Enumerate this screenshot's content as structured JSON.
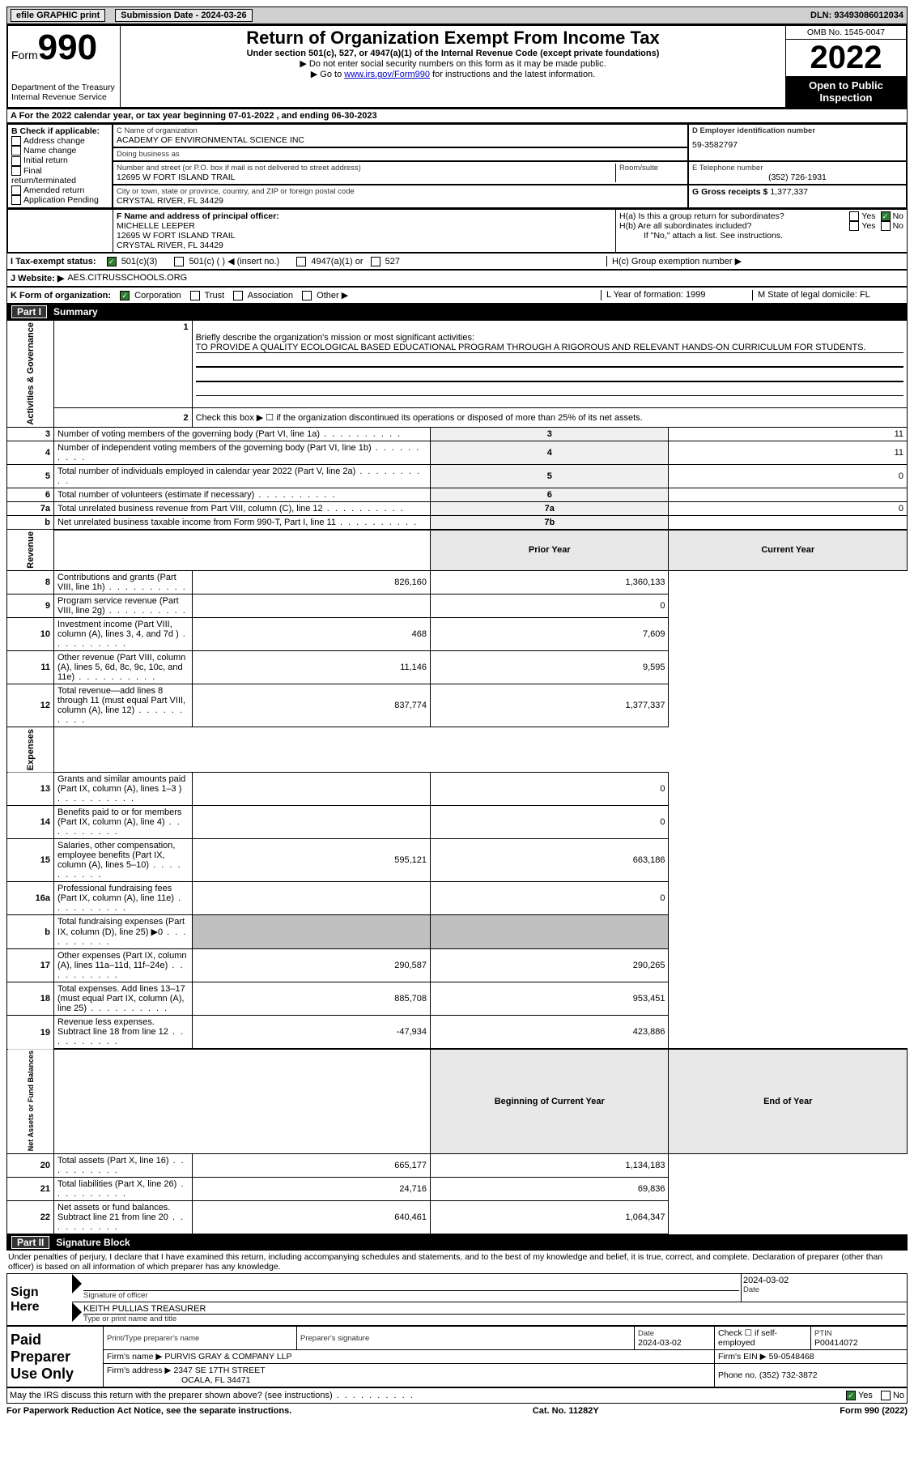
{
  "topbar": {
    "efile": "efile GRAPHIC print",
    "submission_label": "Submission Date - 2024-03-26",
    "dln": "DLN: 93493086012034"
  },
  "header": {
    "form_label": "Form",
    "form_number": "990",
    "dept": "Department of the Treasury Internal Revenue Service",
    "title": "Return of Organization Exempt From Income Tax",
    "subtitle": "Under section 501(c), 527, or 4947(a)(1) of the Internal Revenue Code (except private foundations)",
    "note1": "▶ Do not enter social security numbers on this form as it may be made public.",
    "note2_pre": "▶ Go to ",
    "note2_link": "www.irs.gov/Form990",
    "note2_post": " for instructions and the latest information.",
    "omb": "OMB No. 1545-0047",
    "year": "2022",
    "open": "Open to Public Inspection"
  },
  "A": "A For the 2022 calendar year, or tax year beginning 07-01-2022     , and ending 06-30-2023",
  "B": {
    "title": "B Check if applicable:",
    "addr_change": "Address change",
    "name_change": "Name change",
    "initial": "Initial return",
    "final": "Final return/terminated",
    "amended": "Amended return",
    "app_pending": "Application Pending"
  },
  "C": {
    "name_label": "C Name of organization",
    "name": "ACADEMY OF ENVIRONMENTAL SCIENCE INC",
    "dba_label": "Doing business as",
    "dba": "",
    "street_label": "Number and street (or P.O. box if mail is not delivered to street address)",
    "room_label": "Room/suite",
    "street": "12695 W FORT ISLAND TRAIL",
    "city_label": "City or town, state or province, country, and ZIP or foreign postal code",
    "city": "CRYSTAL RIVER, FL  34429"
  },
  "D": {
    "label": "D Employer identification number",
    "value": "59-3582797"
  },
  "E": {
    "label": "E Telephone number",
    "value": "(352) 726-1931"
  },
  "G": {
    "label": "G Gross receipts $",
    "value": "1,377,337"
  },
  "F": {
    "label": "F  Name and address of principal officer:",
    "name": "MICHELLE LEEPER",
    "street": "12695 W FORT ISLAND TRAIL",
    "city": "CRYSTAL RIVER, FL  34429"
  },
  "H": {
    "a": "H(a)  Is this a group return for subordinates?",
    "b": "H(b)  Are all subordinates included?",
    "note": "If \"No,\" attach a list. See instructions.",
    "c": "H(c)  Group exemption number ▶",
    "yes": "Yes",
    "no": "No"
  },
  "I": {
    "label": "I   Tax-exempt status:",
    "opt1": "501(c)(3)",
    "opt2": "501(c) (  ) ◀ (insert no.)",
    "opt3": "4947(a)(1) or",
    "opt4": "527"
  },
  "J": {
    "label": "J   Website: ▶ ",
    "value": "AES.CITRUSSCHOOLS.ORG"
  },
  "K": {
    "label": "K Form of organization:",
    "corp": "Corporation",
    "trust": "Trust",
    "assoc": "Association",
    "other": "Other ▶",
    "L": "L Year of formation: 1999",
    "M": "M State of legal domicile: FL"
  },
  "part1": {
    "title": "Part I",
    "name": "Summary",
    "line1_label": "Briefly describe the organization's mission or most significant activities:",
    "line1_text": "TO PROVIDE A QUALITY ECOLOGICAL BASED EDUCATIONAL PROGRAM THROUGH A RIGOROUS AND RELEVANT HANDS-ON CURRICULUM FOR STUDENTS.",
    "line2": "Check this box ▶ ☐  if the organization discontinued its operations or disposed of more than 25% of its net assets.",
    "rows_ag": [
      {
        "n": "3",
        "label": "Number of voting members of the governing body (Part VI, line 1a)",
        "box": "3",
        "val": "11"
      },
      {
        "n": "4",
        "label": "Number of independent voting members of the governing body (Part VI, line 1b)",
        "box": "4",
        "val": "11"
      },
      {
        "n": "5",
        "label": "Total number of individuals employed in calendar year 2022 (Part V, line 2a)",
        "box": "5",
        "val": "0"
      },
      {
        "n": "6",
        "label": "Total number of volunteers (estimate if necessary)",
        "box": "6",
        "val": ""
      },
      {
        "n": "7a",
        "label": "Total unrelated business revenue from Part VIII, column (C), line 12",
        "box": "7a",
        "val": "0"
      },
      {
        "n": "b",
        "label": "Net unrelated business taxable income from Form 990-T, Part I, line 11",
        "box": "7b",
        "val": ""
      }
    ],
    "col_prior": "Prior Year",
    "col_current": "Current Year",
    "revenue": [
      {
        "n": "8",
        "label": "Contributions and grants (Part VIII, line 1h)",
        "prior": "826,160",
        "curr": "1,360,133"
      },
      {
        "n": "9",
        "label": "Program service revenue (Part VIII, line 2g)",
        "prior": "",
        "curr": "0"
      },
      {
        "n": "10",
        "label": "Investment income (Part VIII, column (A), lines 3, 4, and 7d )",
        "prior": "468",
        "curr": "7,609"
      },
      {
        "n": "11",
        "label": "Other revenue (Part VIII, column (A), lines 5, 6d, 8c, 9c, 10c, and 11e)",
        "prior": "11,146",
        "curr": "9,595"
      },
      {
        "n": "12",
        "label": "Total revenue—add lines 8 through 11 (must equal Part VIII, column (A), line 12)",
        "prior": "837,774",
        "curr": "1,377,337"
      }
    ],
    "expenses": [
      {
        "n": "13",
        "label": "Grants and similar amounts paid (Part IX, column (A), lines 1–3 )",
        "prior": "",
        "curr": "0"
      },
      {
        "n": "14",
        "label": "Benefits paid to or for members (Part IX, column (A), line 4)",
        "prior": "",
        "curr": "0"
      },
      {
        "n": "15",
        "label": "Salaries, other compensation, employee benefits (Part IX, column (A), lines 5–10)",
        "prior": "595,121",
        "curr": "663,186"
      },
      {
        "n": "16a",
        "label": "Professional fundraising fees (Part IX, column (A), line 11e)",
        "prior": "",
        "curr": "0"
      },
      {
        "n": "b",
        "label": "Total fundraising expenses (Part IX, column (D), line 25) ▶0",
        "prior": "GRAY",
        "curr": "GRAY"
      },
      {
        "n": "17",
        "label": "Other expenses (Part IX, column (A), lines 11a–11d, 11f–24e)",
        "prior": "290,587",
        "curr": "290,265"
      },
      {
        "n": "18",
        "label": "Total expenses. Add lines 13–17 (must equal Part IX, column (A), line 25)",
        "prior": "885,708",
        "curr": "953,451"
      },
      {
        "n": "19",
        "label": "Revenue less expenses. Subtract line 18 from line 12",
        "prior": "-47,934",
        "curr": "423,886"
      }
    ],
    "col_begin": "Beginning of Current Year",
    "col_end": "End of Year",
    "net": [
      {
        "n": "20",
        "label": "Total assets (Part X, line 16)",
        "prior": "665,177",
        "curr": "1,134,183"
      },
      {
        "n": "21",
        "label": "Total liabilities (Part X, line 26)",
        "prior": "24,716",
        "curr": "69,836"
      },
      {
        "n": "22",
        "label": "Net assets or fund balances. Subtract line 21 from line 20",
        "prior": "640,461",
        "curr": "1,064,347"
      }
    ],
    "side_ag": "Activities & Governance",
    "side_rev": "Revenue",
    "side_exp": "Expenses",
    "side_net": "Net Assets or Fund Balances"
  },
  "part2": {
    "title": "Part II",
    "name": "Signature Block",
    "declaration": "Under penalties of perjury, I declare that I have examined this return, including accompanying schedules and statements, and to the best of my knowledge and belief, it is true, correct, and complete. Declaration of preparer (other than officer) is based on all information of which preparer has any knowledge.",
    "sign_here": "Sign Here",
    "sig_officer": "Signature of officer",
    "sig_date": "2024-03-02",
    "date_label": "Date",
    "officer_name": "KEITH PULLIAS TREASURER",
    "type_name": "Type or print name and title",
    "paid_prep": "Paid Preparer Use Only",
    "prep_name_label": "Print/Type preparer's name",
    "prep_sig_label": "Preparer's signature",
    "prep_date_label": "Date",
    "prep_date": "2024-03-02",
    "check_self": "Check ☐ if self-employed",
    "ptin_label": "PTIN",
    "ptin": "P00414072",
    "firm_name_label": "Firm's name     ▶",
    "firm_name": "PURVIS GRAY & COMPANY LLP",
    "firm_ein_label": "Firm's EIN ▶",
    "firm_ein": "59-0548468",
    "firm_addr_label": "Firm's address ▶",
    "firm_addr1": "2347 SE 17TH STREET",
    "firm_addr2": "OCALA, FL  34471",
    "phone_label": "Phone no.",
    "phone": "(352) 732-3872",
    "may_irs": "May the IRS discuss this return with the preparer shown above? (see instructions)",
    "yes": "Yes",
    "no": "No"
  },
  "footer": {
    "pra": "For Paperwork Reduction Act Notice, see the separate instructions.",
    "cat": "Cat. No. 11282Y",
    "form": "Form 990 (2022)"
  }
}
